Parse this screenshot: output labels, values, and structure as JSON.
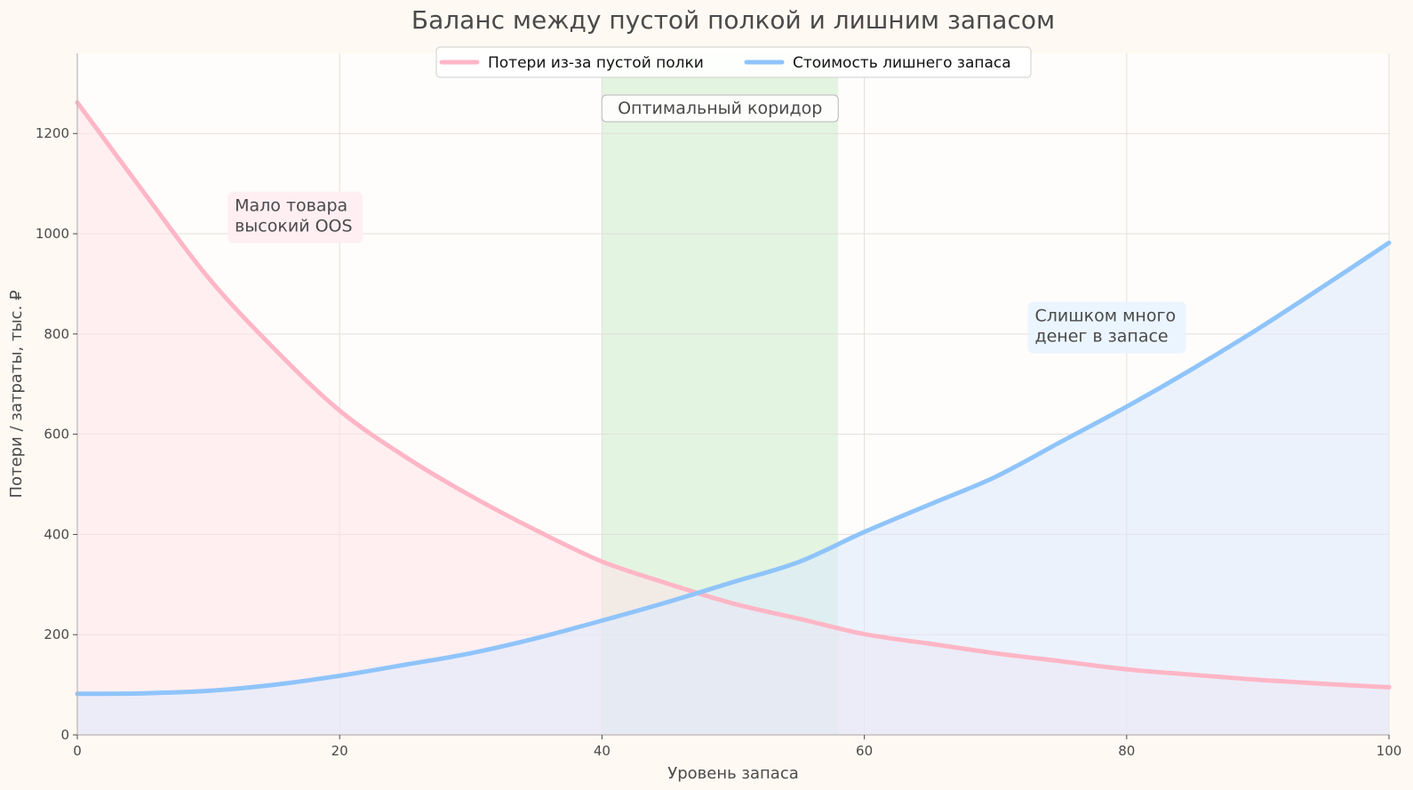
{
  "chart_data": {
    "type": "line",
    "title": "Баланс между пустой полкой и лишним запасом",
    "xlabel": "Уровень запаса",
    "ylabel": "Потери / затраты, тыс. ₽",
    "xlim": [
      0,
      100
    ],
    "ylim": [
      0,
      1360
    ],
    "x_ticks": [
      0,
      20,
      40,
      60,
      80,
      100
    ],
    "y_ticks": [
      0,
      200,
      400,
      600,
      800,
      1000,
      1200
    ],
    "grid": true,
    "legend_position": "top-center",
    "x": [
      0,
      5,
      10,
      15,
      20,
      25,
      30,
      35,
      40,
      45,
      50,
      55,
      60,
      65,
      70,
      75,
      80,
      85,
      90,
      95,
      100
    ],
    "series": [
      {
        "name": "Потери из-за пустой полки",
        "color": "#ffb6c6",
        "fill": "#ffe3ea",
        "values": [
          1262,
          1085,
          912,
          771,
          647,
          555,
          477,
          408,
          346,
          302,
          262,
          232,
          201,
          182,
          163,
          147,
          131,
          120,
          110,
          102,
          95
        ]
      },
      {
        "name": "Стоимость лишнего запаса",
        "color": "#8fc4fb",
        "fill": "#dde9fd",
        "values": [
          82,
          83,
          88,
          100,
          118,
          140,
          163,
          193,
          228,
          265,
          305,
          345,
          405,
          460,
          515,
          585,
          655,
          730,
          810,
          895,
          982
        ]
      }
    ],
    "bands": [
      {
        "x0": 40,
        "x1": 58,
        "color": "#d7f0d4",
        "label": "Оптимальный коридор"
      }
    ],
    "annotations": [
      {
        "lines": [
          "Мало товара",
          "высокий OOS"
        ],
        "x": 12,
        "y": 1045,
        "bg": "#ffeef2"
      },
      {
        "lines": [
          "Слишком много",
          "денег в запасе"
        ],
        "x": 73,
        "y": 825,
        "bg": "#eaf4ff"
      }
    ]
  }
}
